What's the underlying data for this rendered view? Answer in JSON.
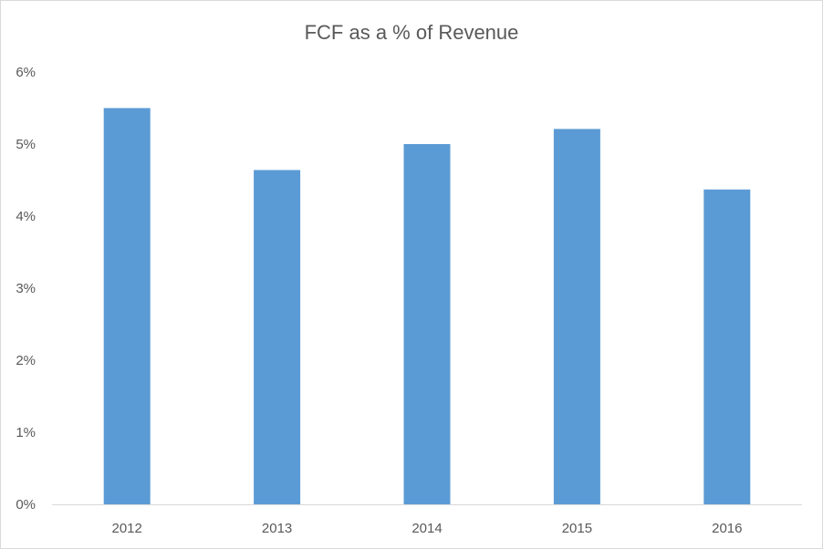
{
  "chart_data": {
    "type": "bar",
    "title": "FCF as a % of Revenue",
    "xlabel": "",
    "ylabel": "",
    "categories": [
      "2012",
      "2013",
      "2014",
      "2015",
      "2016"
    ],
    "values": [
      5.5,
      4.64,
      5.0,
      5.21,
      4.37
    ],
    "ylim": [
      0,
      6
    ],
    "yticks": [
      "0%",
      "1%",
      "2%",
      "3%",
      "4%",
      "5%",
      "6%"
    ],
    "grid": false,
    "legend": "none",
    "bar_color": "#5b9bd5",
    "axis_color": "#d9d9d9",
    "text_color": "#595959"
  }
}
